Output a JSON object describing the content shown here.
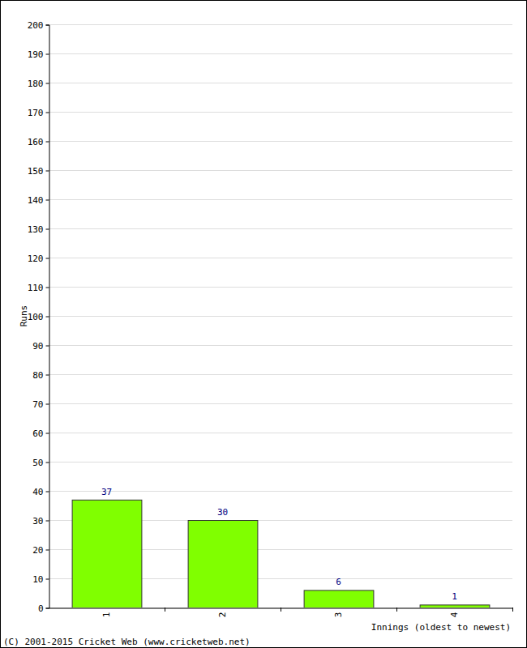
{
  "chart_data": {
    "type": "bar",
    "x_label": "Innings (oldest to newest)",
    "y_label": "Runs",
    "categories": [
      "1",
      "2",
      "3",
      "4"
    ],
    "values": [
      37,
      30,
      6,
      1
    ],
    "color": "#80ff00",
    "ylim": [
      0,
      200
    ],
    "yticks": [
      0,
      10,
      20,
      30,
      40,
      50,
      60,
      70,
      80,
      90,
      100,
      110,
      120,
      130,
      140,
      150,
      160,
      170,
      180,
      190,
      200
    ],
    "grid": true,
    "data_labels": true,
    "annotations": [
      "(C) 2001-2015 Cricket Web (www.cricketweb.net)"
    ]
  }
}
